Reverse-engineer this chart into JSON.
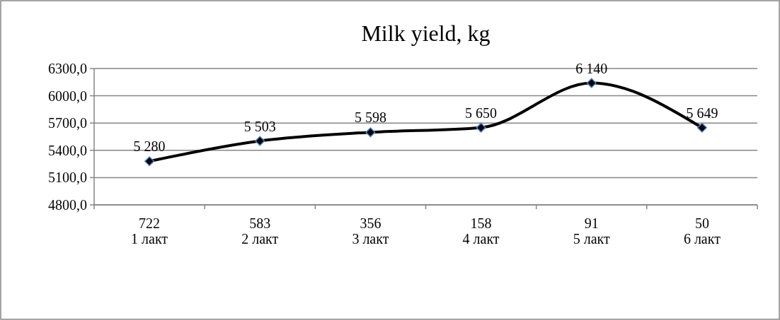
{
  "chart_data": {
    "type": "line",
    "title": "Milk yield, kg",
    "categories": [
      "722\n1 лакт",
      "583\n2 лакт",
      "356\n3 лакт",
      "158\n4 лакт",
      "91\n5 лакт",
      "50\n6 лакт"
    ],
    "series": [
      {
        "color": "#000000",
        "values": [
          5280,
          5503,
          5598,
          5650,
          6140,
          5649
        ],
        "value_labels": [
          "5 280",
          "5 503",
          "5 598",
          "5 650",
          "6 140",
          "5 649"
        ]
      }
    ],
    "ylim": [
      4800,
      6300
    ],
    "yticks": [
      {
        "value": 4800,
        "label": "4800,0"
      },
      {
        "value": 5100,
        "label": "5100,0"
      },
      {
        "value": 5400,
        "label": "5400,0"
      },
      {
        "value": 5700,
        "label": "5700,0"
      },
      {
        "value": 6000,
        "label": "6000,0"
      },
      {
        "value": 6300,
        "label": "6300,0"
      }
    ],
    "grid": "y",
    "marker": "diamond",
    "line_style": "solid"
  }
}
